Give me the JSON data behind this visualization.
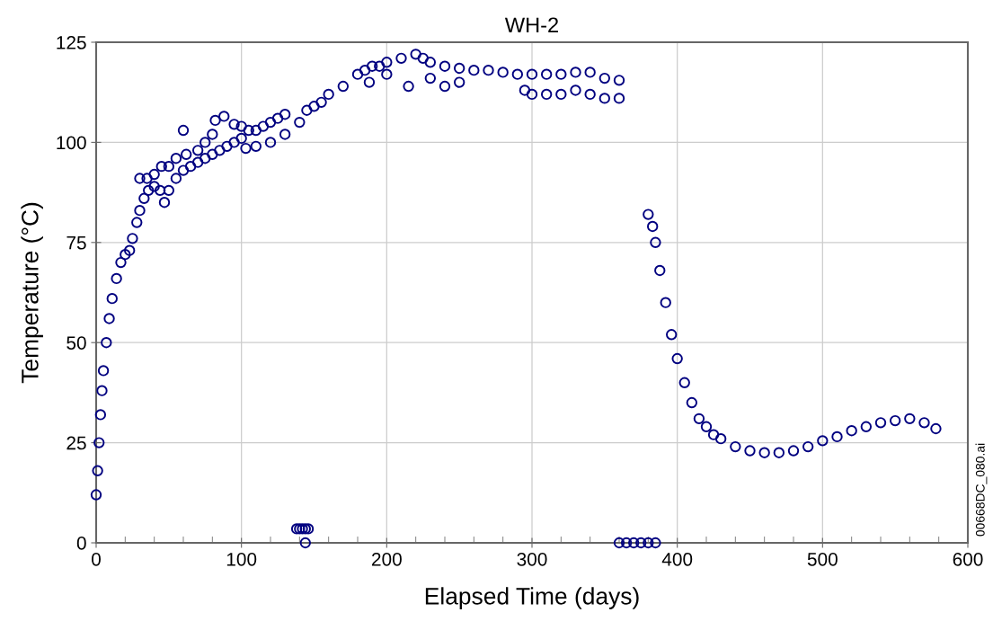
{
  "chart_data": {
    "type": "scatter",
    "title": "WH-2",
    "xlabel": "Elapsed Time (days)",
    "ylabel": "Temperature (°C)",
    "annotations": [
      "00668DC_080.ai"
    ],
    "xlim": [
      0,
      600
    ],
    "xticks": [
      0,
      100,
      200,
      300,
      400,
      500,
      600
    ],
    "ylim": [
      0,
      125
    ],
    "yticks": [
      0,
      25,
      50,
      75,
      100,
      125
    ],
    "grid": true,
    "marker": "circle",
    "series": [
      {
        "color": "#000080",
        "x": [
          0,
          1,
          2,
          3,
          4,
          5,
          7,
          9,
          11,
          14,
          17,
          20,
          23,
          25,
          28,
          30,
          33,
          36,
          40,
          44,
          47,
          50,
          55,
          60,
          65,
          70,
          75,
          80,
          85,
          90,
          95,
          100,
          103,
          110,
          120,
          130,
          140,
          145,
          150,
          155,
          160,
          170,
          180,
          185,
          188,
          190,
          195,
          200,
          210,
          220,
          225,
          230,
          240,
          250,
          260,
          270,
          280,
          290,
          300,
          310,
          320,
          330,
          340,
          350,
          360,
          295,
          300,
          310,
          320,
          330,
          340,
          350,
          360,
          30,
          35,
          40,
          45,
          50,
          55,
          60,
          62,
          70,
          75,
          80,
          82,
          88,
          95,
          100,
          105,
          110,
          115,
          120,
          125,
          130,
          200,
          215,
          230,
          240,
          250,
          138,
          140,
          142,
          144,
          146,
          144,
          360,
          365,
          370,
          375,
          380,
          385,
          380,
          383,
          385,
          388,
          392,
          396,
          400,
          405,
          410,
          415,
          420,
          425,
          430,
          440,
          450,
          460,
          470,
          480,
          490,
          500,
          510,
          520,
          530,
          540,
          550,
          560,
          570,
          578
        ],
        "values": [
          12,
          18,
          25,
          32,
          38,
          43,
          50,
          56,
          61,
          66,
          70,
          72,
          73,
          76,
          80,
          83,
          86,
          88,
          89,
          88,
          85,
          88,
          91,
          93,
          94,
          95,
          96,
          97,
          98,
          99,
          100,
          101,
          98.5,
          99,
          100,
          102,
          105,
          108,
          109,
          110,
          112,
          114,
          117,
          118,
          115,
          119,
          119,
          120,
          121,
          122,
          121,
          120,
          119,
          118.5,
          118,
          118,
          117.5,
          117,
          117,
          117,
          117,
          117.5,
          117.5,
          116,
          115.5,
          113,
          112,
          112,
          112,
          113,
          112,
          111,
          111,
          91,
          91,
          92,
          94,
          94,
          96,
          103,
          97,
          98,
          100,
          102,
          105.5,
          106.5,
          104.5,
          104,
          103,
          103,
          104,
          105,
          106,
          107,
          117,
          114,
          116,
          114,
          115,
          3.5,
          3.5,
          3.5,
          3.5,
          3.5,
          0,
          0,
          0,
          0,
          0,
          0,
          0,
          82,
          79,
          75,
          68,
          60,
          52,
          46,
          40,
          35,
          31,
          29,
          27,
          26,
          24,
          23,
          22.5,
          22.5,
          23,
          24,
          25.5,
          26.5,
          28,
          29,
          30,
          30.5,
          31,
          30,
          28.5
        ]
      }
    ]
  }
}
